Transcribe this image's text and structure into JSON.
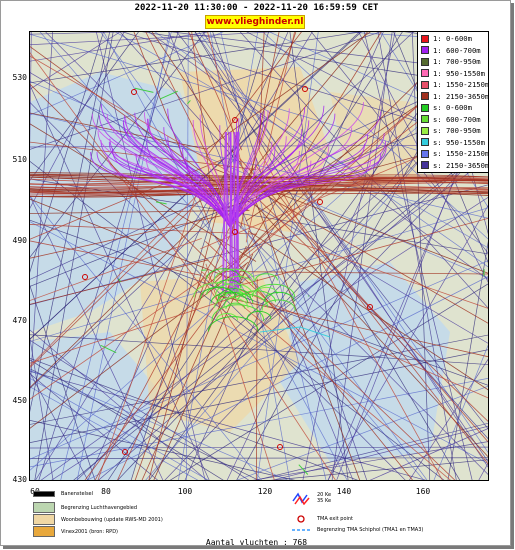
{
  "header": {
    "period": "2022-11-20 11:30:00 - 2022-11-20 16:59:59 CET",
    "site": "www.vlieghinder.nl"
  },
  "axes": {
    "y_ticks": [
      "530",
      "510",
      "490",
      "470",
      "450",
      "430"
    ],
    "x_ticks": [
      "60",
      "80",
      "100",
      "120",
      "140",
      "160"
    ]
  },
  "legend": [
    {
      "label": "1: 0-600m",
      "color": "#e8141c"
    },
    {
      "label": "1: 600-700m",
      "color": "#a020f0"
    },
    {
      "label": "1: 700-950m",
      "color": "#556b2f"
    },
    {
      "label": "1: 950-1550m",
      "color": "#ff69b4"
    },
    {
      "label": "1: 1550-2150m",
      "color": "#e8506a"
    },
    {
      "label": "1: 2150-3650m",
      "color": "#a0301e"
    },
    {
      "label": "s: 0-600m",
      "color": "#22cc22"
    },
    {
      "label": "s: 600-700m",
      "color": "#66dd33"
    },
    {
      "label": "s: 700-950m",
      "color": "#99ee44"
    },
    {
      "label": "s: 950-1550m",
      "color": "#33ccdd"
    },
    {
      "label": "s: 1550-2150m",
      "color": "#6677ee"
    },
    {
      "label": "s: 2150-3650m",
      "color": "#443399"
    }
  ],
  "bottom_legend": {
    "runway": "Banenstelsel",
    "airport_boundary": "Begrenzing Luchthavengebied",
    "residential": "Woonbebouwing (update RWS-MD 2001)",
    "vinex": "Vinex2001 (bron: RPD)",
    "noise_20": "20 Ke",
    "noise_35": "35 Ke",
    "tma_exit": "TMA exit point",
    "tma_boundary": "Begrenzing TMA Schiphol  (TMA1 en TMA3)"
  },
  "footer": "Aantal vluchten : 768",
  "colors": {
    "water": "#c6dbe8",
    "land": "#e2e4cf",
    "urban": "#f0d7a4"
  }
}
